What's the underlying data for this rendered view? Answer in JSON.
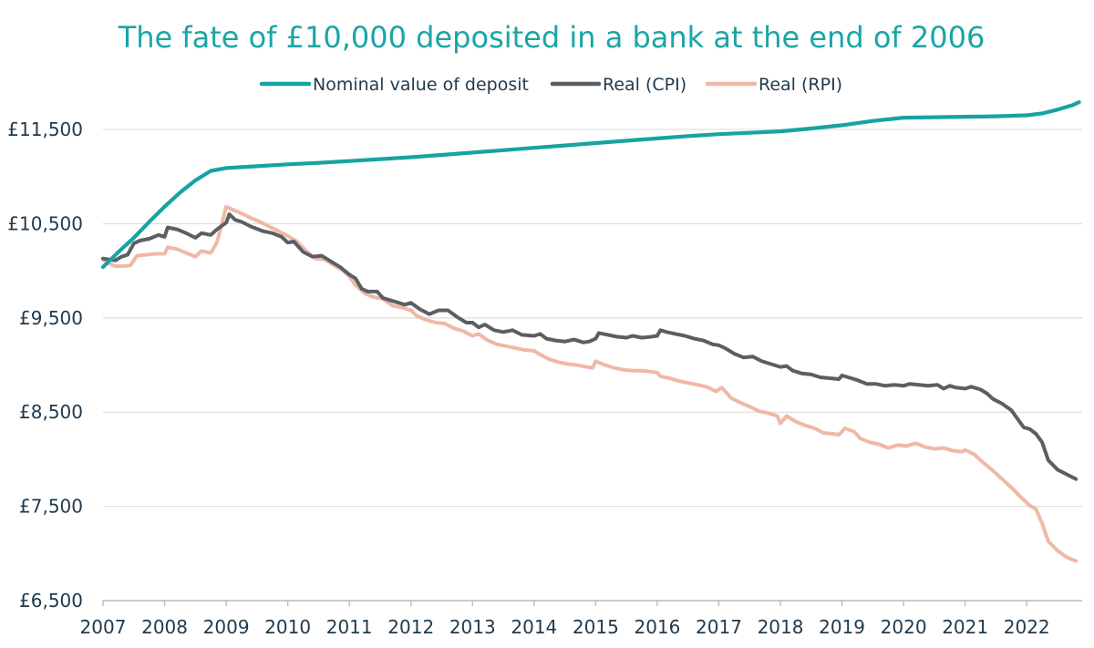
{
  "chart_data": {
    "type": "line",
    "title": "The fate of £10,000 deposited in a bank at the end of 2006",
    "xlabel": "",
    "ylabel": "",
    "x_range": [
      2007,
      2022.9
    ],
    "ylim": [
      6500,
      12100
    ],
    "grid": true,
    "legend_position": "top",
    "y_ticks": [
      {
        "value": 11500,
        "label": "£11,500"
      },
      {
        "value": 10500,
        "label": "£10,500"
      },
      {
        "value": 9500,
        "label": "£9,500"
      },
      {
        "value": 8500,
        "label": "£8,500"
      },
      {
        "value": 7500,
        "label": "£7,500"
      },
      {
        "value": 6500,
        "label": "£6,500"
      }
    ],
    "x_ticks": [
      {
        "value": 2007,
        "label": "2007"
      },
      {
        "value": 2008,
        "label": "2008"
      },
      {
        "value": 2009,
        "label": "2009"
      },
      {
        "value": 2010,
        "label": "2010"
      },
      {
        "value": 2011,
        "label": "2011"
      },
      {
        "value": 2012,
        "label": "2012"
      },
      {
        "value": 2013,
        "label": "2013"
      },
      {
        "value": 2014,
        "label": "2014"
      },
      {
        "value": 2015,
        "label": "2015"
      },
      {
        "value": 2016,
        "label": "2016"
      },
      {
        "value": 2017,
        "label": "2017"
      },
      {
        "value": 2018,
        "label": "2018"
      },
      {
        "value": 2019,
        "label": "2019"
      },
      {
        "value": 2020,
        "label": "2020"
      },
      {
        "value": 2021,
        "label": "2021"
      },
      {
        "value": 2022,
        "label": "2022"
      }
    ],
    "series": [
      {
        "name": "Nominal value of deposit",
        "color": "#17a3a3",
        "points": [
          [
            2007.0,
            10040
          ],
          [
            2007.25,
            10200
          ],
          [
            2007.5,
            10350
          ],
          [
            2007.75,
            10520
          ],
          [
            2008.0,
            10680
          ],
          [
            2008.25,
            10830
          ],
          [
            2008.5,
            10960
          ],
          [
            2008.75,
            11060
          ],
          [
            2009.0,
            11090
          ],
          [
            2009.25,
            11100
          ],
          [
            2009.5,
            11110
          ],
          [
            2009.75,
            11120
          ],
          [
            2010.0,
            11130
          ],
          [
            2010.5,
            11145
          ],
          [
            2011.0,
            11165
          ],
          [
            2011.5,
            11185
          ],
          [
            2012.0,
            11205
          ],
          [
            2012.5,
            11230
          ],
          [
            2013.0,
            11255
          ],
          [
            2013.5,
            11280
          ],
          [
            2014.0,
            11305
          ],
          [
            2014.5,
            11330
          ],
          [
            2015.0,
            11355
          ],
          [
            2015.5,
            11380
          ],
          [
            2016.0,
            11405
          ],
          [
            2016.5,
            11430
          ],
          [
            2017.0,
            11450
          ],
          [
            2017.5,
            11465
          ],
          [
            2018.0,
            11480
          ],
          [
            2018.5,
            11510
          ],
          [
            2019.0,
            11545
          ],
          [
            2019.5,
            11590
          ],
          [
            2020.0,
            11625
          ],
          [
            2020.5,
            11630
          ],
          [
            2021.0,
            11635
          ],
          [
            2021.5,
            11640
          ],
          [
            2022.0,
            11650
          ],
          [
            2022.25,
            11670
          ],
          [
            2022.5,
            11710
          ],
          [
            2022.75,
            11760
          ],
          [
            2022.85,
            11790
          ]
        ]
      },
      {
        "name": "Real (CPI)",
        "color": "#5b5f63",
        "points": [
          [
            2007.0,
            10130
          ],
          [
            2007.1,
            10120
          ],
          [
            2007.2,
            10110
          ],
          [
            2007.3,
            10150
          ],
          [
            2007.4,
            10170
          ],
          [
            2007.5,
            10290
          ],
          [
            2007.6,
            10320
          ],
          [
            2007.75,
            10340
          ],
          [
            2007.9,
            10380
          ],
          [
            2008.0,
            10360
          ],
          [
            2008.05,
            10460
          ],
          [
            2008.2,
            10440
          ],
          [
            2008.35,
            10400
          ],
          [
            2008.5,
            10350
          ],
          [
            2008.6,
            10400
          ],
          [
            2008.75,
            10380
          ],
          [
            2008.85,
            10440
          ],
          [
            2009.0,
            10510
          ],
          [
            2009.05,
            10600
          ],
          [
            2009.15,
            10540
          ],
          [
            2009.25,
            10520
          ],
          [
            2009.4,
            10470
          ],
          [
            2009.6,
            10420
          ],
          [
            2009.75,
            10400
          ],
          [
            2009.9,
            10360
          ],
          [
            2010.0,
            10300
          ],
          [
            2010.1,
            10310
          ],
          [
            2010.25,
            10200
          ],
          [
            2010.4,
            10150
          ],
          [
            2010.55,
            10160
          ],
          [
            2010.7,
            10100
          ],
          [
            2010.85,
            10040
          ],
          [
            2011.0,
            9960
          ],
          [
            2011.1,
            9920
          ],
          [
            2011.2,
            9810
          ],
          [
            2011.3,
            9780
          ],
          [
            2011.45,
            9780
          ],
          [
            2011.55,
            9710
          ],
          [
            2011.75,
            9670
          ],
          [
            2011.9,
            9640
          ],
          [
            2012.0,
            9660
          ],
          [
            2012.15,
            9590
          ],
          [
            2012.3,
            9540
          ],
          [
            2012.45,
            9580
          ],
          [
            2012.6,
            9580
          ],
          [
            2012.75,
            9510
          ],
          [
            2012.9,
            9450
          ],
          [
            2013.0,
            9450
          ],
          [
            2013.1,
            9400
          ],
          [
            2013.2,
            9430
          ],
          [
            2013.35,
            9370
          ],
          [
            2013.5,
            9350
          ],
          [
            2013.65,
            9370
          ],
          [
            2013.8,
            9320
          ],
          [
            2014.0,
            9310
          ],
          [
            2014.1,
            9330
          ],
          [
            2014.2,
            9280
          ],
          [
            2014.35,
            9260
          ],
          [
            2014.5,
            9250
          ],
          [
            2014.65,
            9270
          ],
          [
            2014.8,
            9240
          ],
          [
            2014.9,
            9250
          ],
          [
            2015.0,
            9280
          ],
          [
            2015.05,
            9340
          ],
          [
            2015.2,
            9320
          ],
          [
            2015.35,
            9300
          ],
          [
            2015.5,
            9290
          ],
          [
            2015.6,
            9310
          ],
          [
            2015.75,
            9290
          ],
          [
            2015.9,
            9300
          ],
          [
            2016.0,
            9310
          ],
          [
            2016.05,
            9370
          ],
          [
            2016.15,
            9350
          ],
          [
            2016.3,
            9330
          ],
          [
            2016.45,
            9310
          ],
          [
            2016.6,
            9280
          ],
          [
            2016.75,
            9260
          ],
          [
            2016.9,
            9220
          ],
          [
            2017.0,
            9210
          ],
          [
            2017.1,
            9180
          ],
          [
            2017.25,
            9120
          ],
          [
            2017.4,
            9080
          ],
          [
            2017.55,
            9090
          ],
          [
            2017.7,
            9040
          ],
          [
            2017.85,
            9010
          ],
          [
            2018.0,
            8980
          ],
          [
            2018.1,
            8990
          ],
          [
            2018.2,
            8940
          ],
          [
            2018.35,
            8910
          ],
          [
            2018.5,
            8900
          ],
          [
            2018.65,
            8870
          ],
          [
            2018.8,
            8860
          ],
          [
            2018.95,
            8850
          ],
          [
            2019.0,
            8890
          ],
          [
            2019.1,
            8870
          ],
          [
            2019.25,
            8840
          ],
          [
            2019.4,
            8800
          ],
          [
            2019.55,
            8800
          ],
          [
            2019.7,
            8780
          ],
          [
            2019.85,
            8790
          ],
          [
            2020.0,
            8780
          ],
          [
            2020.1,
            8800
          ],
          [
            2020.25,
            8790
          ],
          [
            2020.4,
            8780
          ],
          [
            2020.55,
            8790
          ],
          [
            2020.65,
            8750
          ],
          [
            2020.75,
            8780
          ],
          [
            2020.85,
            8760
          ],
          [
            2021.0,
            8750
          ],
          [
            2021.1,
            8770
          ],
          [
            2021.25,
            8740
          ],
          [
            2021.35,
            8700
          ],
          [
            2021.45,
            8640
          ],
          [
            2021.6,
            8590
          ],
          [
            2021.75,
            8520
          ],
          [
            2021.85,
            8430
          ],
          [
            2021.95,
            8340
          ],
          [
            2022.05,
            8320
          ],
          [
            2022.15,
            8270
          ],
          [
            2022.25,
            8180
          ],
          [
            2022.35,
            7990
          ],
          [
            2022.5,
            7890
          ],
          [
            2022.65,
            7840
          ],
          [
            2022.8,
            7790
          ]
        ]
      },
      {
        "name": "Real (RPI)",
        "color": "#efb8a8",
        "points": [
          [
            2007.0,
            10120
          ],
          [
            2007.1,
            10080
          ],
          [
            2007.2,
            10050
          ],
          [
            2007.35,
            10050
          ],
          [
            2007.45,
            10060
          ],
          [
            2007.55,
            10160
          ],
          [
            2007.7,
            10170
          ],
          [
            2007.85,
            10180
          ],
          [
            2008.0,
            10180
          ],
          [
            2008.05,
            10250
          ],
          [
            2008.2,
            10230
          ],
          [
            2008.35,
            10190
          ],
          [
            2008.5,
            10150
          ],
          [
            2008.6,
            10210
          ],
          [
            2008.75,
            10190
          ],
          [
            2008.85,
            10300
          ],
          [
            2009.0,
            10680
          ],
          [
            2009.1,
            10650
          ],
          [
            2009.25,
            10610
          ],
          [
            2009.4,
            10560
          ],
          [
            2009.55,
            10520
          ],
          [
            2009.7,
            10470
          ],
          [
            2009.85,
            10420
          ],
          [
            2010.0,
            10370
          ],
          [
            2010.15,
            10310
          ],
          [
            2010.3,
            10210
          ],
          [
            2010.45,
            10130
          ],
          [
            2010.6,
            10120
          ],
          [
            2010.75,
            10060
          ],
          [
            2010.9,
            10000
          ],
          [
            2011.0,
            9940
          ],
          [
            2011.1,
            9850
          ],
          [
            2011.25,
            9760
          ],
          [
            2011.4,
            9720
          ],
          [
            2011.55,
            9700
          ],
          [
            2011.7,
            9630
          ],
          [
            2011.85,
            9610
          ],
          [
            2012.0,
            9580
          ],
          [
            2012.1,
            9520
          ],
          [
            2012.25,
            9480
          ],
          [
            2012.4,
            9450
          ],
          [
            2012.55,
            9440
          ],
          [
            2012.7,
            9390
          ],
          [
            2012.85,
            9360
          ],
          [
            2013.0,
            9310
          ],
          [
            2013.1,
            9330
          ],
          [
            2013.25,
            9260
          ],
          [
            2013.4,
            9220
          ],
          [
            2013.55,
            9200
          ],
          [
            2013.7,
            9180
          ],
          [
            2013.85,
            9160
          ],
          [
            2014.0,
            9150
          ],
          [
            2014.1,
            9110
          ],
          [
            2014.25,
            9060
          ],
          [
            2014.4,
            9030
          ],
          [
            2014.55,
            9010
          ],
          [
            2014.7,
            9000
          ],
          [
            2014.85,
            8980
          ],
          [
            2014.95,
            8970
          ],
          [
            2015.0,
            9040
          ],
          [
            2015.15,
            9000
          ],
          [
            2015.3,
            8970
          ],
          [
            2015.45,
            8950
          ],
          [
            2015.6,
            8940
          ],
          [
            2015.75,
            8940
          ],
          [
            2015.9,
            8930
          ],
          [
            2016.0,
            8920
          ],
          [
            2016.05,
            8880
          ],
          [
            2016.2,
            8860
          ],
          [
            2016.35,
            8830
          ],
          [
            2016.5,
            8810
          ],
          [
            2016.65,
            8790
          ],
          [
            2016.8,
            8770
          ],
          [
            2016.95,
            8720
          ],
          [
            2017.05,
            8760
          ],
          [
            2017.2,
            8650
          ],
          [
            2017.35,
            8600
          ],
          [
            2017.5,
            8560
          ],
          [
            2017.65,
            8510
          ],
          [
            2017.8,
            8490
          ],
          [
            2017.95,
            8460
          ],
          [
            2018.0,
            8380
          ],
          [
            2018.1,
            8460
          ],
          [
            2018.25,
            8400
          ],
          [
            2018.4,
            8360
          ],
          [
            2018.55,
            8330
          ],
          [
            2018.7,
            8280
          ],
          [
            2018.85,
            8270
          ],
          [
            2018.95,
            8260
          ],
          [
            2019.05,
            8330
          ],
          [
            2019.2,
            8290
          ],
          [
            2019.3,
            8220
          ],
          [
            2019.45,
            8180
          ],
          [
            2019.6,
            8160
          ],
          [
            2019.75,
            8120
          ],
          [
            2019.9,
            8150
          ],
          [
            2020.05,
            8140
          ],
          [
            2020.2,
            8170
          ],
          [
            2020.35,
            8130
          ],
          [
            2020.5,
            8110
          ],
          [
            2020.65,
            8120
          ],
          [
            2020.8,
            8090
          ],
          [
            2020.95,
            8080
          ],
          [
            2021.0,
            8100
          ],
          [
            2021.15,
            8050
          ],
          [
            2021.3,
            7960
          ],
          [
            2021.45,
            7880
          ],
          [
            2021.6,
            7790
          ],
          [
            2021.75,
            7700
          ],
          [
            2021.9,
            7600
          ],
          [
            2022.05,
            7510
          ],
          [
            2022.15,
            7470
          ],
          [
            2022.25,
            7320
          ],
          [
            2022.35,
            7130
          ],
          [
            2022.5,
            7030
          ],
          [
            2022.65,
            6960
          ],
          [
            2022.8,
            6920
          ]
        ]
      }
    ]
  }
}
